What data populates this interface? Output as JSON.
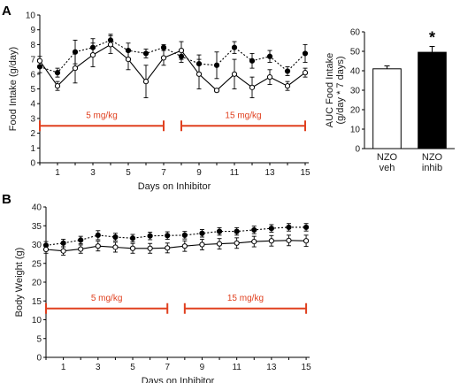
{
  "panels": {
    "a_label": "A",
    "b_label": "B"
  },
  "colors": {
    "annotation": "#e0401f",
    "series": "#000000"
  },
  "chart_data": [
    {
      "id": "A-food",
      "type": "line",
      "xlabel": "Days on Inhibitor",
      "ylabel": "Food Intake (g/day)",
      "xlim": [
        0,
        15.2
      ],
      "ylim": [
        0,
        10
      ],
      "yticks": [
        0,
        1,
        2,
        3,
        4,
        5,
        6,
        7,
        8,
        9,
        10
      ],
      "xticks": [
        1,
        3,
        5,
        7,
        9,
        11,
        13,
        15
      ],
      "grid": false,
      "series": [
        {
          "style": "dotted-filled",
          "x": [
            0,
            1,
            2,
            3,
            4,
            5,
            6,
            7,
            8,
            9,
            10,
            11,
            12,
            13,
            14,
            15
          ],
          "y": [
            6.5,
            6.1,
            7.5,
            7.8,
            8.3,
            7.6,
            7.4,
            7.8,
            7.2,
            6.7,
            6.6,
            7.8,
            6.9,
            7.2,
            6.2,
            7.4
          ],
          "err": [
            0.4,
            0.3,
            0.8,
            0.6,
            0.4,
            0.5,
            0.3,
            0.2,
            0.4,
            0.6,
            0.9,
            0.4,
            0.5,
            0.4,
            0.3,
            0.6
          ]
        },
        {
          "style": "solid-open",
          "x": [
            0,
            1,
            2,
            3,
            4,
            5,
            6,
            7,
            8,
            9,
            10,
            11,
            12,
            13,
            14,
            15
          ],
          "y": [
            6.9,
            5.2,
            6.4,
            7.3,
            8.0,
            7.0,
            5.5,
            7.1,
            7.6,
            6.0,
            4.9,
            6.0,
            5.1,
            5.8,
            5.2,
            6.1
          ],
          "err": [
            0.3,
            0.3,
            1.0,
            0.8,
            0.6,
            0.7,
            1.1,
            0.5,
            0.6,
            1.0,
            0.1,
            1.0,
            0.7,
            0.5,
            0.3,
            0.3
          ]
        }
      ],
      "annotations": [
        {
          "text": "5 mg/kg",
          "x_start": 0,
          "x_end": 7,
          "y": 2.5
        },
        {
          "text": "15 mg/kg",
          "x_start": 8,
          "x_end": 15,
          "y": 2.5
        }
      ]
    },
    {
      "id": "A-auc",
      "type": "bar",
      "ylabel": "AUC Food Intake (g/day * 7 days)",
      "ylim": [
        0,
        60
      ],
      "yticks": [
        0,
        10,
        20,
        30,
        40,
        50,
        60
      ],
      "categories": [
        "NZO veh",
        "NZO inhib"
      ],
      "category_lines": [
        [
          "NZO",
          "veh"
        ],
        [
          "NZO",
          "inhib"
        ]
      ],
      "values": [
        41,
        49.5
      ],
      "errors": [
        1.5,
        3
      ],
      "fills": [
        "#ffffff",
        "#000000"
      ],
      "significance": {
        "text": "*",
        "index": 1
      }
    },
    {
      "id": "B-weight",
      "type": "line",
      "xlabel": "Days on Inhibitor",
      "ylabel": "Body Weight (g)",
      "xlim": [
        0,
        15.2
      ],
      "ylim": [
        0,
        40
      ],
      "yticks": [
        0,
        5,
        10,
        15,
        20,
        25,
        30,
        35,
        40
      ],
      "xticks": [
        1,
        3,
        5,
        7,
        9,
        11,
        13,
        15
      ],
      "grid": false,
      "series": [
        {
          "style": "dotted-filled",
          "x": [
            0,
            1,
            2,
            3,
            4,
            5,
            6,
            7,
            8,
            9,
            10,
            11,
            12,
            13,
            14,
            15
          ],
          "y": [
            29.8,
            30.4,
            31.2,
            32.5,
            32.0,
            31.7,
            32.3,
            32.4,
            32.5,
            33.0,
            33.5,
            33.5,
            33.9,
            34.3,
            34.6,
            34.6
          ],
          "err": [
            1.0,
            1.0,
            1.0,
            1.2,
            1.0,
            1.0,
            1.0,
            1.0,
            1.0,
            1.0,
            1.0,
            1.0,
            1.0,
            1.0,
            1.0,
            1.0
          ]
        },
        {
          "style": "solid-open",
          "x": [
            0,
            1,
            2,
            3,
            4,
            5,
            6,
            7,
            8,
            9,
            10,
            11,
            12,
            13,
            14,
            15
          ],
          "y": [
            28.7,
            28.3,
            28.8,
            29.6,
            29.3,
            29.0,
            29.0,
            29.1,
            29.6,
            30.0,
            30.2,
            30.4,
            30.8,
            31.0,
            31.1,
            31.0
          ],
          "err": [
            1.0,
            1.1,
            1.1,
            1.3,
            1.3,
            1.3,
            1.3,
            1.3,
            1.4,
            1.4,
            1.4,
            1.4,
            1.4,
            1.4,
            1.4,
            1.5
          ]
        }
      ],
      "annotations": [
        {
          "text": "5 mg/kg",
          "x_start": 0,
          "x_end": 7,
          "y": 13
        },
        {
          "text": "15 mg/kg",
          "x_start": 8,
          "x_end": 15,
          "y": 13
        }
      ]
    }
  ]
}
